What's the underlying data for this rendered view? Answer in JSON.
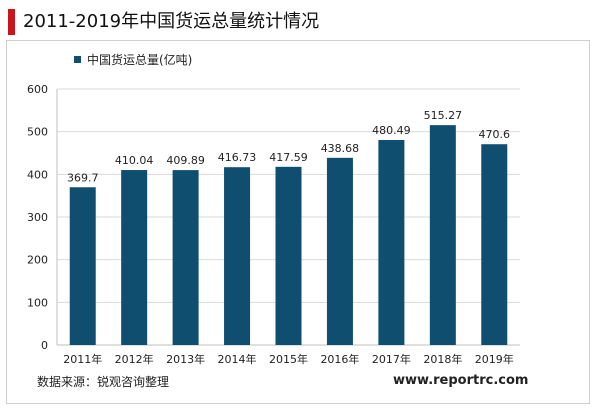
{
  "title": "2011-2019年中国货运总量统计情况",
  "legend": {
    "label": "中国货运总量(亿吨)"
  },
  "footer": {
    "source": "数据来源：锐观咨询整理",
    "website": "www.reportrc.com"
  },
  "colors": {
    "bar": "#0f4e6e",
    "accent": "#c9151e",
    "grid": "#d9d9d9"
  },
  "chart_data": {
    "type": "bar",
    "title": "2011-2019年中国货运总量统计情况",
    "categories": [
      "2011年",
      "2012年",
      "2013年",
      "2014年",
      "2015年",
      "2016年",
      "2017年",
      "2018年",
      "2019年"
    ],
    "series": [
      {
        "name": "中国货运总量(亿吨)",
        "values": [
          369.7,
          410.04,
          409.89,
          416.73,
          417.59,
          438.68,
          480.49,
          515.27,
          470.6
        ],
        "labels": [
          "369.7",
          "410.04",
          "409.89",
          "416.73",
          "417.59",
          "438.68",
          "480.49",
          "515.27",
          "470.6"
        ]
      }
    ],
    "ylim": [
      0,
      600
    ],
    "yticks": [
      0,
      100,
      200,
      300,
      400,
      500,
      600
    ],
    "grid": true,
    "legend_position": "top-left",
    "xlabel": "",
    "ylabel": ""
  }
}
